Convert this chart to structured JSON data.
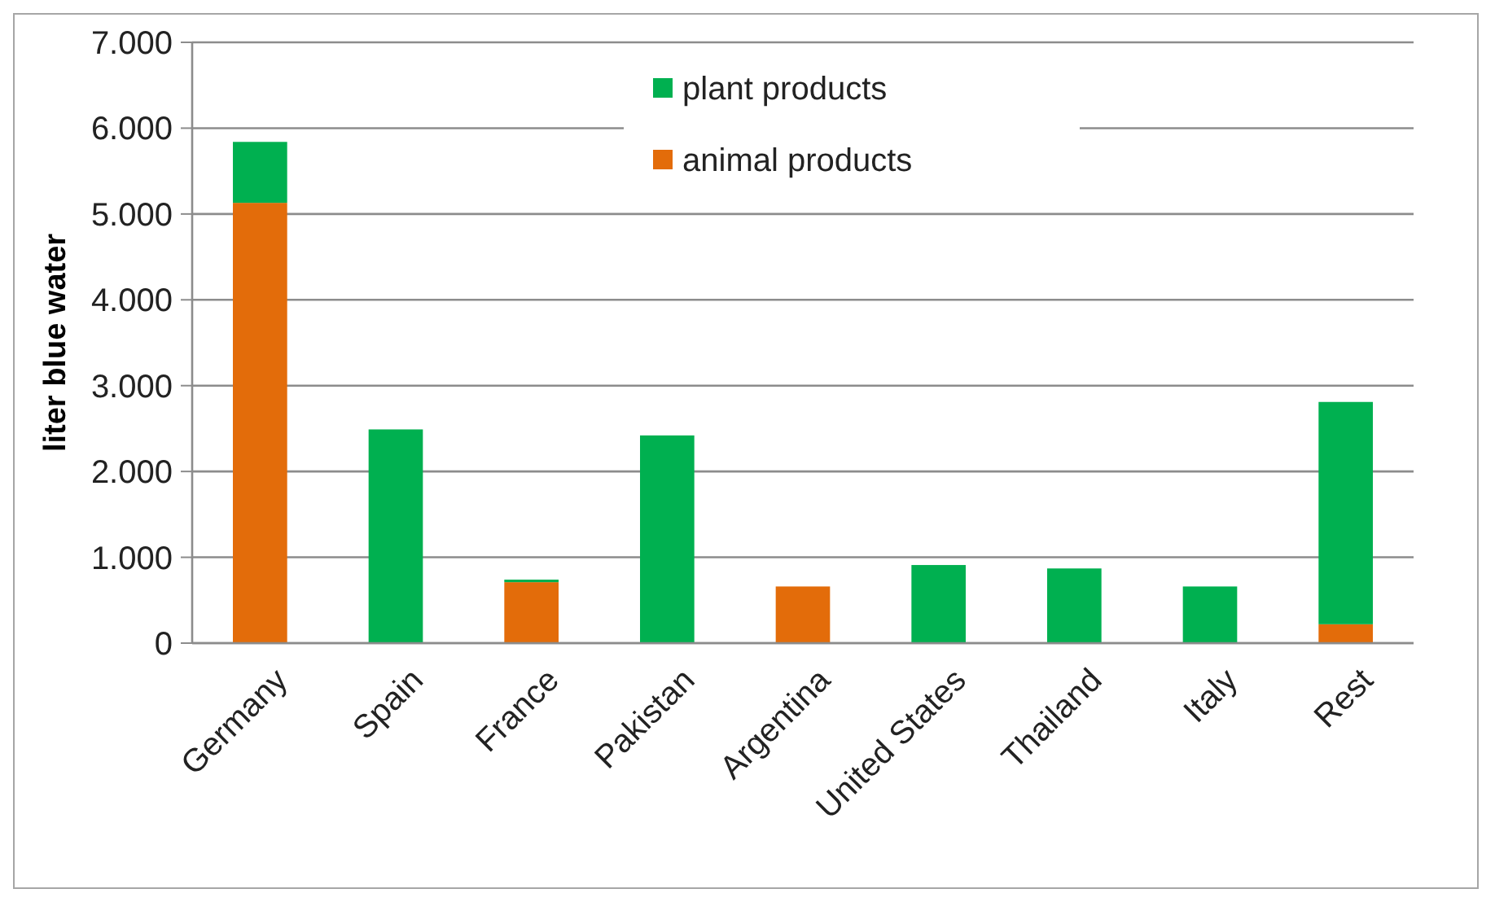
{
  "chart_data": {
    "type": "bar",
    "ylabel": "liter blue water",
    "categories": [
      "Germany",
      "Spain",
      "France",
      "Pakistan",
      "Argentina",
      "United States",
      "Thailand",
      "Italy",
      "Rest"
    ],
    "series": [
      {
        "name": "animal products",
        "color": "#e36c0a",
        "values": [
          5130,
          0,
          710,
          0,
          660,
          0,
          0,
          0,
          220
        ]
      },
      {
        "name": "plant products",
        "color": "#00b050",
        "values": [
          710,
          2490,
          30,
          2420,
          0,
          910,
          870,
          660,
          2590
        ]
      }
    ],
    "stacked": true,
    "ylim": [
      0,
      7000
    ],
    "yticks": [
      {
        "value": 0,
        "label": "0"
      },
      {
        "value": 1000,
        "label": "1.000"
      },
      {
        "value": 2000,
        "label": "2.000"
      },
      {
        "value": 3000,
        "label": "3.000"
      },
      {
        "value": 4000,
        "label": "4.000"
      },
      {
        "value": 5000,
        "label": "5.000"
      },
      {
        "value": 6000,
        "label": "6.000"
      },
      {
        "value": 7000,
        "label": "7.000"
      }
    ],
    "grid": "y",
    "legend": "top"
  }
}
